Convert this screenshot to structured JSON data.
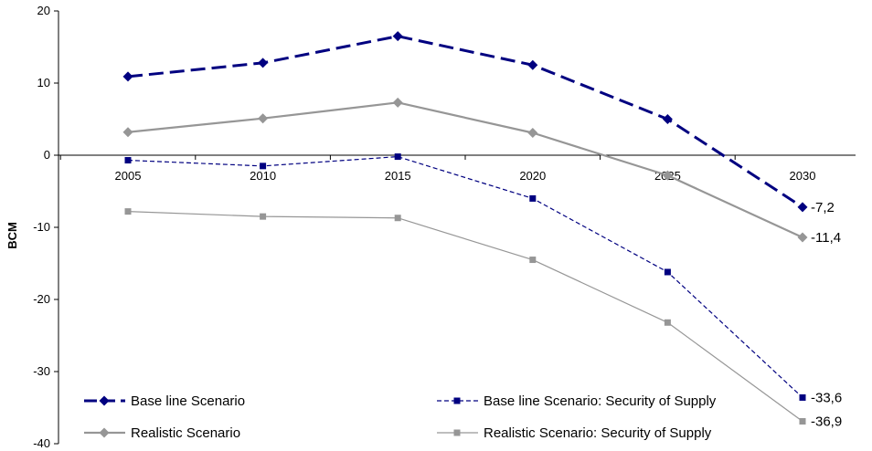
{
  "chart_data": {
    "type": "line",
    "title": "",
    "xlabel": "",
    "ylabel": "BCM",
    "ylim": [
      -40,
      20
    ],
    "yticks": [
      "20",
      "10",
      "0",
      "-10",
      "-20",
      "-30",
      "-40"
    ],
    "ytick_values": [
      20,
      10,
      0,
      -10,
      -20,
      -30,
      -40
    ],
    "categories": [
      "2005",
      "2010",
      "2015",
      "2020",
      "2025",
      "2030"
    ],
    "grid": false,
    "legend_position": "bottom",
    "series": [
      {
        "name": "Base line Scenario",
        "values": [
          10.9,
          12.8,
          16.5,
          12.5,
          5.0,
          -7.2
        ],
        "end_label": "-7,2",
        "color": "#000080",
        "marker": "diamond",
        "line": "long-dash"
      },
      {
        "name": "Base line Scenario: Security of Supply",
        "values": [
          -0.7,
          -1.5,
          -0.2,
          -6.0,
          -16.2,
          -33.6
        ],
        "end_label": "-33,6",
        "color": "#000080",
        "marker": "square",
        "line": "short-dash"
      },
      {
        "name": "Realistic Scenario",
        "values": [
          3.2,
          5.1,
          7.3,
          3.1,
          -2.8,
          -11.4
        ],
        "end_label": "-11,4",
        "color": "#969696",
        "marker": "diamond",
        "line": "solid-thick"
      },
      {
        "name": "Realistic Scenario: Security of Supply",
        "values": [
          -7.8,
          -8.5,
          -8.7,
          -14.5,
          -23.2,
          -36.9
        ],
        "end_label": "-36,9",
        "color": "#969696",
        "marker": "square",
        "line": "solid-thin"
      }
    ]
  }
}
